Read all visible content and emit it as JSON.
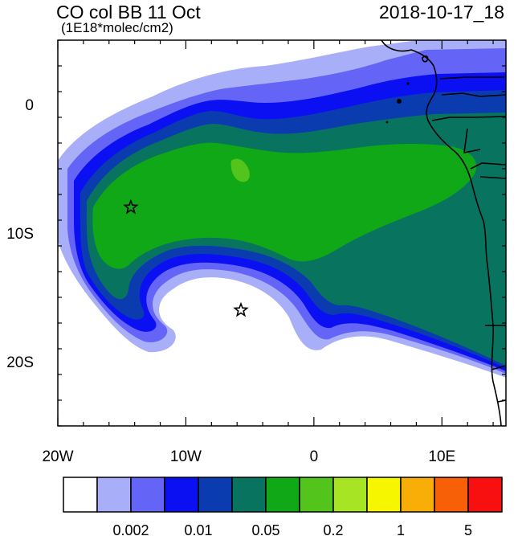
{
  "header": {
    "title": "CO col BB 11 Oct",
    "subtitle": "(1E18*molec/cm2)",
    "timestamp": "2018-10-17_18"
  },
  "map": {
    "lon_range": [
      -20,
      15
    ],
    "lat_range": [
      -25,
      5
    ],
    "x_ticks": [
      {
        "value": -20,
        "label": "20W"
      },
      {
        "value": -10,
        "label": "10W"
      },
      {
        "value": 0,
        "label": "0"
      },
      {
        "value": 10,
        "label": "10E"
      }
    ],
    "y_ticks": [
      {
        "value": 0,
        "label": "0"
      },
      {
        "value": -10,
        "label": "10S"
      },
      {
        "value": -20,
        "label": "20S"
      }
    ],
    "markers": [
      {
        "symbol": "star",
        "lon": -14.3,
        "lat": -8
      },
      {
        "symbol": "star",
        "lon": -5.7,
        "lat": -16
      }
    ]
  },
  "colorbar": {
    "colors": [
      "#ffffff",
      "#a8aef8",
      "#6464f6",
      "#0a10f2",
      "#0a3cb0",
      "#087460",
      "#10a816",
      "#52c41c",
      "#a6e424",
      "#f6f600",
      "#f8ae06",
      "#f86008",
      "#f81010"
    ],
    "labels": [
      {
        "boundary": 2,
        "label": "0.002"
      },
      {
        "boundary": 4,
        "label": "0.01"
      },
      {
        "boundary": 6,
        "label": "0.05"
      },
      {
        "boundary": 8,
        "label": "0.2"
      },
      {
        "boundary": 10,
        "label": "1"
      },
      {
        "boundary": 12,
        "label": "5"
      }
    ]
  }
}
